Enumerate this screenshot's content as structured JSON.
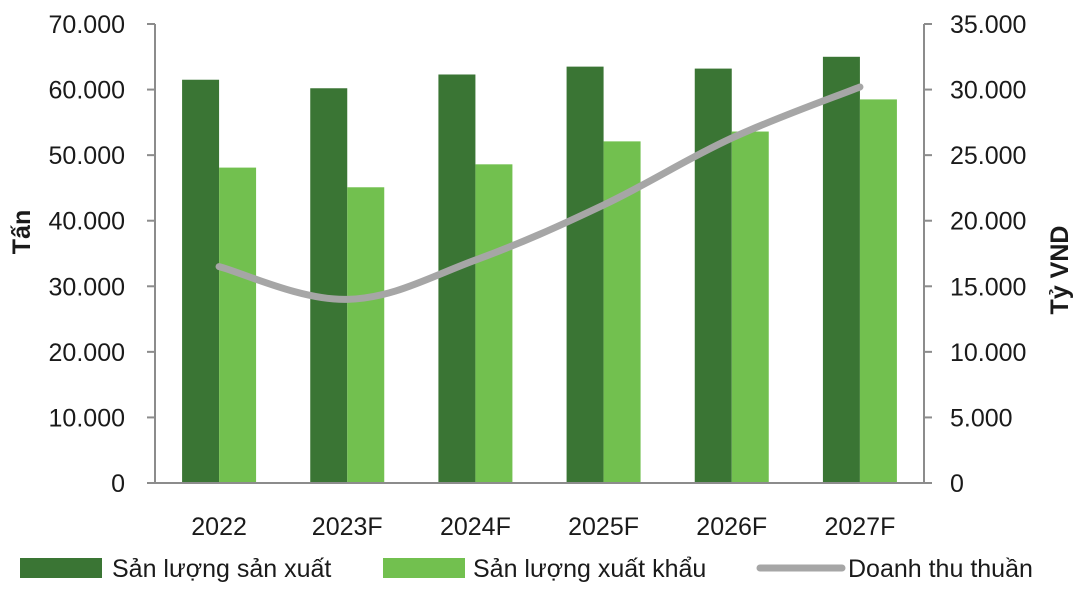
{
  "chart_data": {
    "type": "bar",
    "categories": [
      "2022",
      "2023F",
      "2024F",
      "2025F",
      "2026F",
      "2027F"
    ],
    "series": [
      {
        "name": "Sản lượng sản xuất",
        "kind": "bar",
        "axis": "left",
        "color": "#3a7534",
        "values": [
          61500,
          60200,
          62300,
          63500,
          63200,
          65000
        ]
      },
      {
        "name": "Sản lượng xuất khẩu",
        "kind": "bar",
        "axis": "left",
        "color": "#72c04f",
        "values": [
          48100,
          45100,
          48600,
          52100,
          53600,
          58500
        ]
      },
      {
        "name": "Doanh thu thuần",
        "kind": "line",
        "axis": "right",
        "color": "#a6a6a6",
        "values": [
          16500,
          14000,
          17000,
          21200,
          26300,
          30200
        ]
      }
    ],
    "ylabel": "Tấn",
    "y2label": "Tỷ VND",
    "ylim": [
      0,
      70000
    ],
    "y2lim": [
      0,
      35000
    ],
    "yticks": [
      "0",
      "10.000",
      "20.000",
      "30.000",
      "40.000",
      "50.000",
      "60.000",
      "70.000"
    ],
    "y2ticks": [
      "0",
      "5.000",
      "10.000",
      "15.000",
      "20.000",
      "25.000",
      "30.000",
      "35.000"
    ],
    "legend_position": "bottom",
    "grid": false
  }
}
